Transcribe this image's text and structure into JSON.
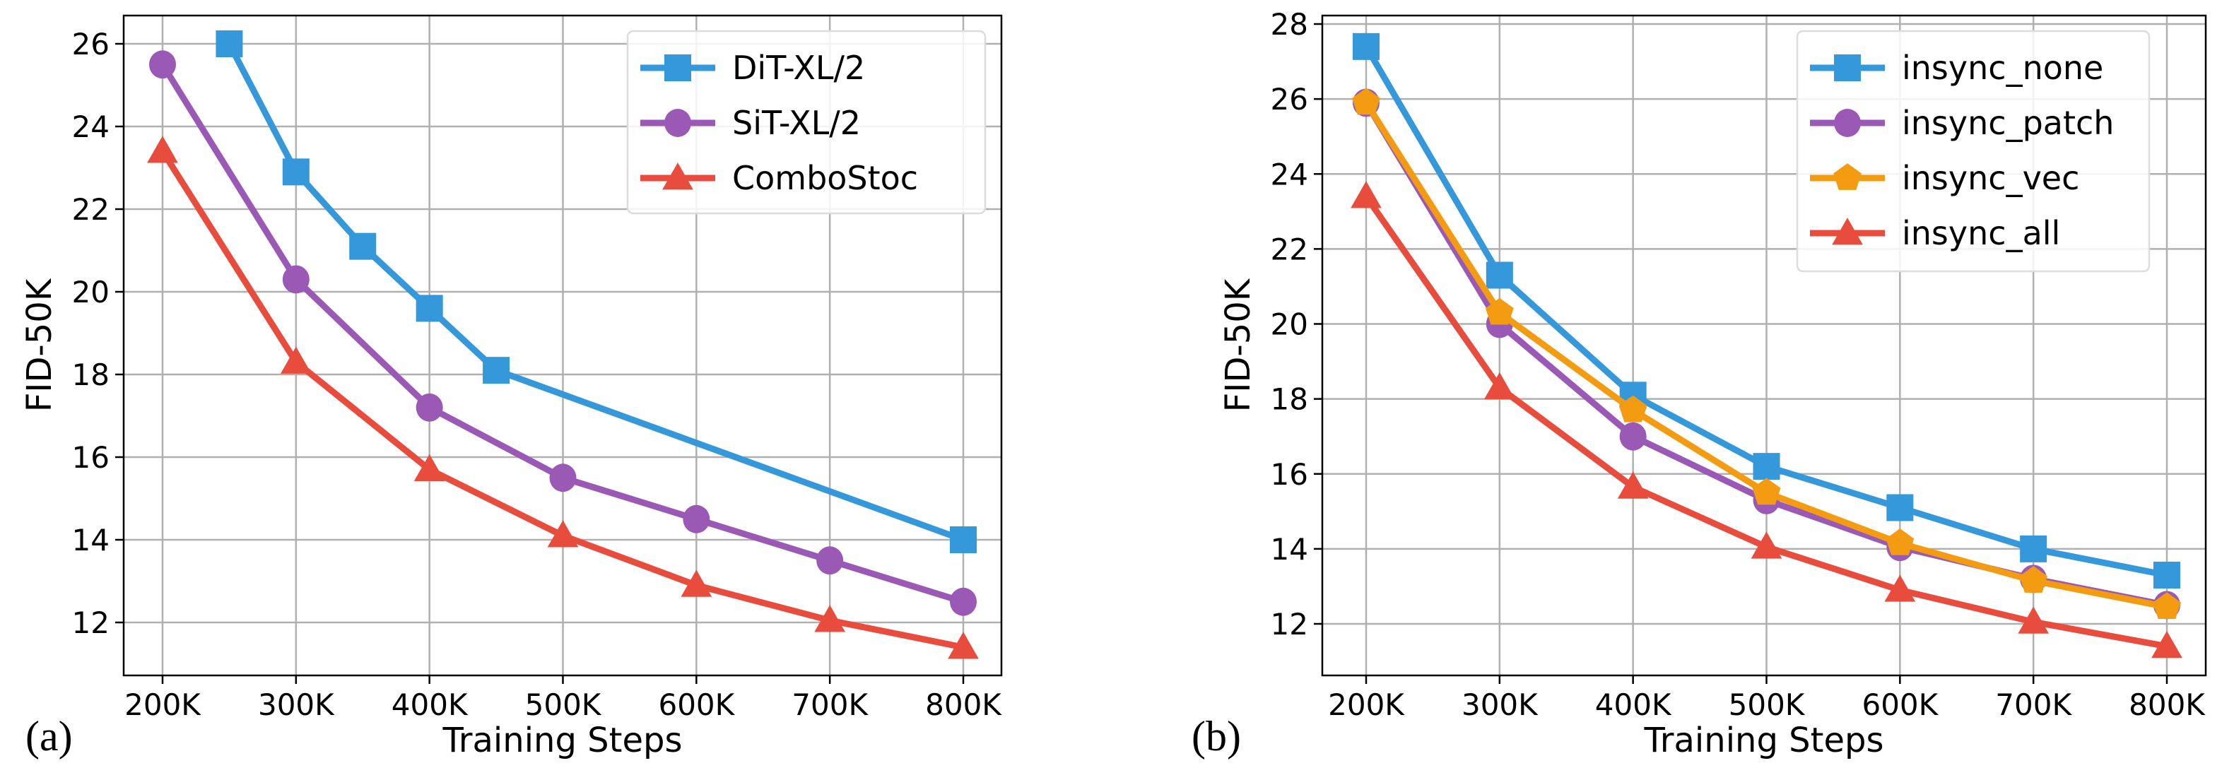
{
  "chart_data": [
    {
      "type": "line",
      "panel_label": "(a)",
      "title": "",
      "xlabel": "Training Steps",
      "ylabel": "FID-50K",
      "xlim": [
        185,
        815
      ],
      "ylim": [
        10.8,
        26.7
      ],
      "x_ticks": [
        200,
        300,
        400,
        500,
        600,
        700,
        800
      ],
      "x_tick_labels": [
        "200K",
        "300K",
        "400K",
        "500K",
        "600K",
        "700K",
        "800K"
      ],
      "y_ticks": [
        12,
        14,
        16,
        18,
        20,
        22,
        24,
        26
      ],
      "y_tick_labels": [
        "12",
        "14",
        "16",
        "18",
        "20",
        "22",
        "24",
        "26"
      ],
      "grid": true,
      "legend_position": "top-right",
      "series": [
        {
          "name": "DiT-XL/2",
          "color": "#3498db",
          "marker": "square",
          "x": [
            250,
            300,
            350,
            400,
            450,
            800
          ],
          "values": [
            26.0,
            22.9,
            21.1,
            19.6,
            18.1,
            14.0
          ]
        },
        {
          "name": "SiT-XL/2",
          "color": "#9b59b6",
          "marker": "circle",
          "x": [
            200,
            300,
            400,
            500,
            600,
            700,
            800
          ],
          "values": [
            25.5,
            20.3,
            17.2,
            15.5,
            14.5,
            13.5,
            12.5
          ]
        },
        {
          "name": "ComboStoc",
          "color": "#e74c3c",
          "marker": "triangle",
          "x": [
            200,
            300,
            400,
            500,
            600,
            700,
            800
          ],
          "values": [
            23.4,
            18.3,
            15.7,
            14.1,
            12.9,
            12.05,
            11.4
          ]
        }
      ]
    },
    {
      "type": "line",
      "panel_label": "(b)",
      "title": "",
      "xlabel": "Training Steps",
      "ylabel": "FID-50K",
      "xlim": [
        185,
        815
      ],
      "ylim": [
        10.8,
        28.3
      ],
      "x_ticks": [
        200,
        300,
        400,
        500,
        600,
        700,
        800
      ],
      "x_tick_labels": [
        "200K",
        "300K",
        "400K",
        "500K",
        "600K",
        "700K",
        "800K"
      ],
      "y_ticks": [
        12,
        14,
        16,
        18,
        20,
        22,
        24,
        26,
        28
      ],
      "y_tick_labels": [
        "12",
        "14",
        "16",
        "18",
        "20",
        "22",
        "24",
        "26",
        "28"
      ],
      "grid": true,
      "legend_position": "top-right",
      "series": [
        {
          "name": "insync_none",
          "color": "#3498db",
          "marker": "square",
          "x": [
            200,
            300,
            400,
            500,
            600,
            700,
            800
          ],
          "values": [
            27.4,
            21.3,
            18.1,
            16.2,
            15.1,
            14.0,
            13.3
          ]
        },
        {
          "name": "insync_patch",
          "color": "#9b59b6",
          "marker": "circle",
          "x": [
            200,
            300,
            400,
            500,
            600,
            700,
            800
          ],
          "values": [
            25.9,
            20.0,
            17.0,
            15.3,
            14.05,
            13.2,
            12.5
          ]
        },
        {
          "name": "insync_vec",
          "color": "#f39c12",
          "marker": "pentagon",
          "x": [
            200,
            300,
            400,
            500,
            600,
            700,
            800
          ],
          "values": [
            25.9,
            20.3,
            17.7,
            15.5,
            14.15,
            13.15,
            12.45
          ]
        },
        {
          "name": "insync_all",
          "color": "#e74c3c",
          "marker": "triangle",
          "x": [
            200,
            300,
            400,
            500,
            600,
            700,
            800
          ],
          "values": [
            23.4,
            18.3,
            15.65,
            14.05,
            12.9,
            12.05,
            11.4
          ]
        }
      ]
    }
  ]
}
